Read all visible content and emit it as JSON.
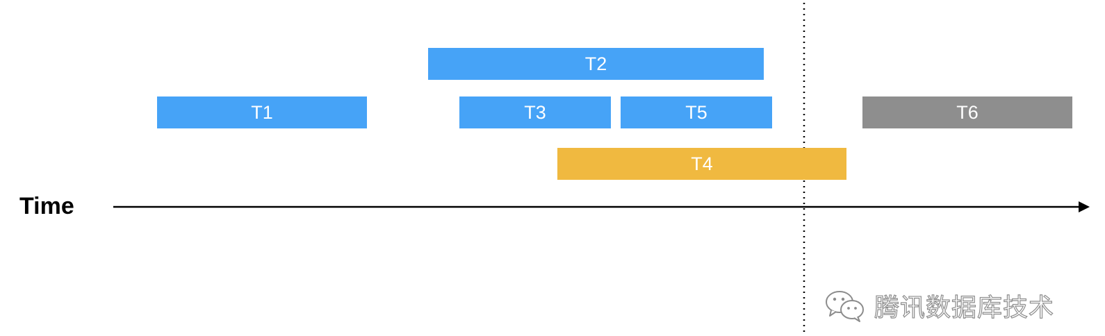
{
  "axis": {
    "label": "Time"
  },
  "tasks": [
    {
      "label": "T1",
      "status": "running",
      "color": "#46a3f7"
    },
    {
      "label": "T2",
      "status": "running",
      "color": "#46a3f7"
    },
    {
      "label": "T3",
      "status": "running",
      "color": "#46a3f7"
    },
    {
      "label": "T5",
      "status": "running",
      "color": "#46a3f7"
    },
    {
      "label": "T4",
      "status": "pending",
      "color": "#f0b940"
    },
    {
      "label": "T6",
      "status": "not started",
      "color": "#8e8e8e"
    }
  ],
  "watermark": {
    "text": "腾讯数据库技术",
    "icon": "wechat-icon"
  }
}
